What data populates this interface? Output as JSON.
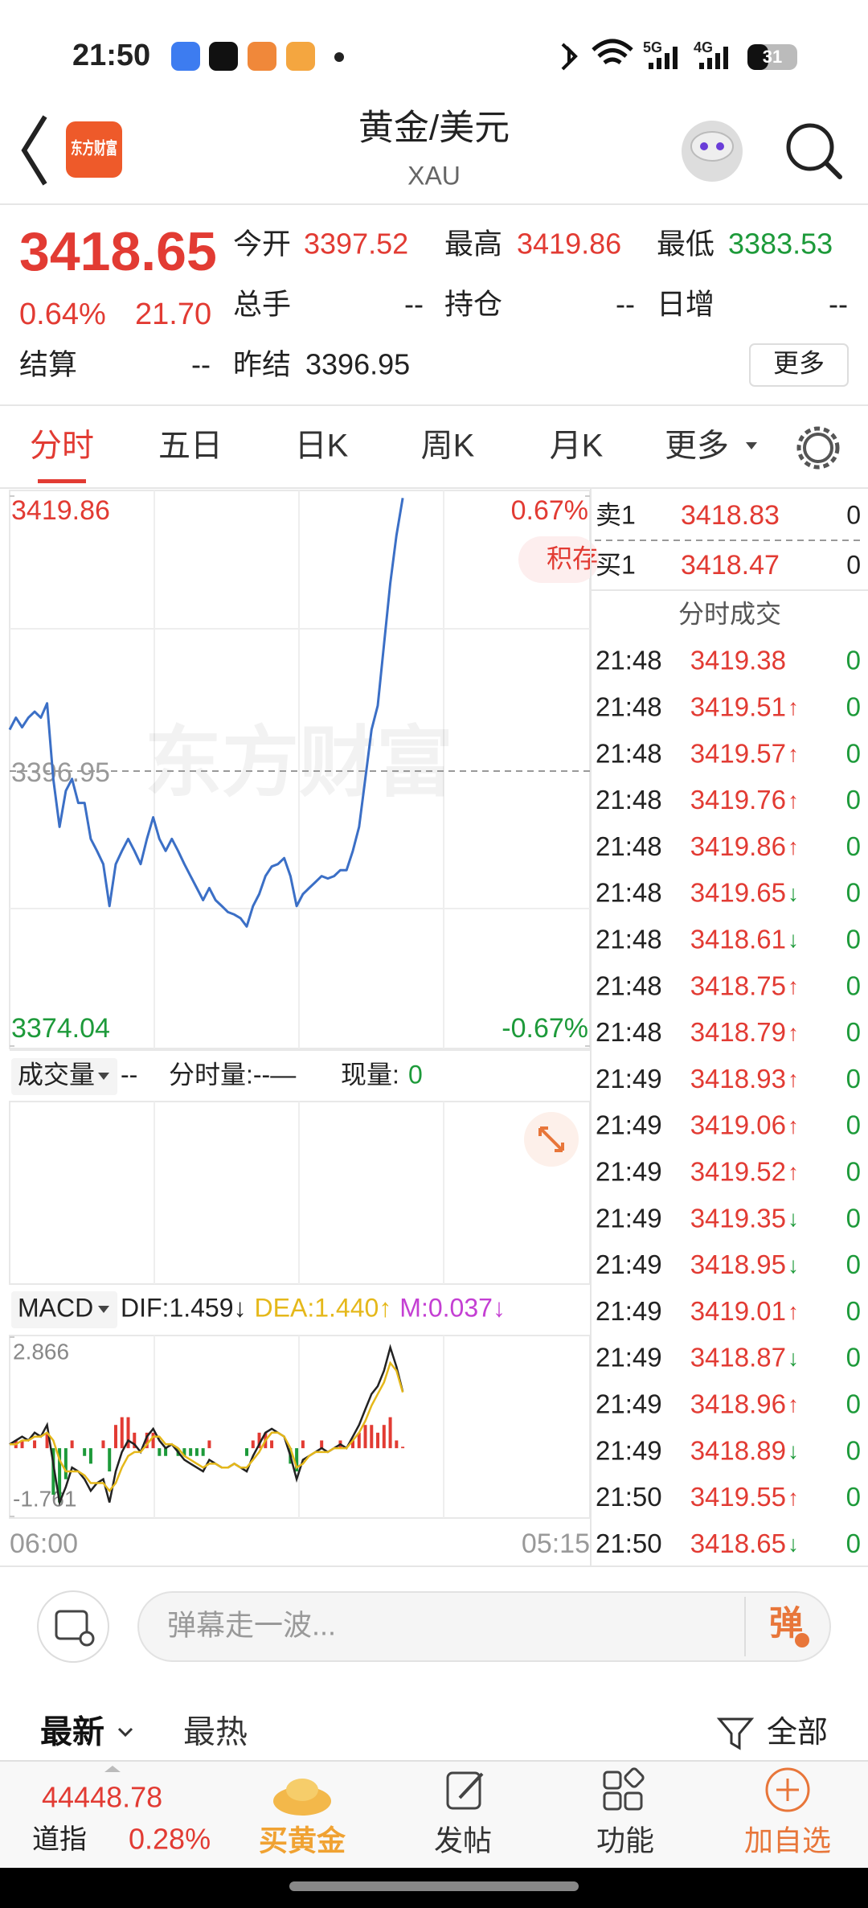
{
  "status_bar": {
    "time": "21:50",
    "net1": "5G",
    "net2": "4G",
    "battery": "31"
  },
  "header": {
    "logo": "东方财富",
    "title": "黄金/美元",
    "subtitle": "XAU"
  },
  "quote": {
    "price": "3418.65",
    "change_pct": "0.64%",
    "change": "21.70",
    "fields": [
      {
        "label": "今开",
        "value": "3397.52"
      },
      {
        "label": "最高",
        "value": "3419.86"
      },
      {
        "label": "最低",
        "value": "3383.53"
      },
      {
        "label": "总手",
        "value": "--"
      },
      {
        "label": "持仓",
        "value": "--"
      },
      {
        "label": "日增",
        "value": "--"
      },
      {
        "label": "结算",
        "value": "--"
      },
      {
        "label": "昨结",
        "value": "3396.95"
      }
    ],
    "more": "更多"
  },
  "tabs": [
    "分时",
    "五日",
    "日K",
    "周K",
    "月K",
    "更多"
  ],
  "chart_data": [
    {
      "type": "line",
      "watermark": "东方财富",
      "tag": "积存",
      "series": [
        {
          "color": "#3b6fc6",
          "values": [
            3400.4,
            3401.4,
            3400.6,
            3401.4,
            3401.9,
            3401.4,
            3402.6,
            3396.3,
            3392.3,
            3395.3,
            3396.3,
            3394.3,
            3394.3,
            3391.3,
            3390.3,
            3389.2,
            3385.7,
            3389.2,
            3390.3,
            3391.3,
            3390.3,
            3389.2,
            3391.3,
            3393.1,
            3391.3,
            3390.3,
            3391.3,
            3390.3,
            3389.2,
            3388.2,
            3387.2,
            3386.2,
            3387.2,
            3386.2,
            3385.7,
            3385.2,
            3385.0,
            3384.7,
            3384.0,
            3385.7,
            3386.7,
            3388.2,
            3389.0,
            3389.2,
            3389.7,
            3388.2,
            3385.7,
            3386.7,
            3387.2,
            3387.7,
            3388.2,
            3388.0,
            3388.2,
            3388.7,
            3388.7,
            3390.3,
            3392.3,
            3396.3,
            3400.4,
            3402.4,
            3407.5,
            3412.6,
            3416.6,
            3419.7,
            null,
            null,
            null,
            null,
            null,
            null,
            null,
            null,
            null,
            null,
            null,
            null,
            null,
            null,
            null,
            null,
            null,
            null,
            null,
            null,
            null,
            null,
            null,
            null,
            null,
            null,
            null,
            null,
            null,
            null
          ]
        }
      ],
      "ylim": [
        3374.04,
        3419.86
      ],
      "yticks": [
        3419.86,
        3396.95,
        3374.04
      ],
      "y2lim": [
        -0.67,
        0.67
      ],
      "y2ticks": [
        {
          "value": 0.67,
          "label": "0.67%"
        },
        {
          "value": -0.67,
          "label": "-0.67%"
        }
      ]
    },
    {
      "type": "macd",
      "indicator": "MACD",
      "series": [
        {
          "name": "DIF:1.459↓",
          "color": "#222222",
          "values": [
            0.1,
            0.2,
            0.3,
            0.2,
            0.4,
            0.3,
            0.6,
            -0.4,
            -1.4,
            -1.0,
            -0.5,
            -0.6,
            -0.8,
            -1.1,
            -0.9,
            -0.8,
            -1.4,
            -0.6,
            -0.1,
            0.2,
            0.1,
            -0.1,
            0.3,
            0.5,
            0.2,
            0,
            0.1,
            -0.1,
            -0.3,
            -0.4,
            -0.5,
            -0.6,
            -0.3,
            -0.4,
            -0.5,
            -0.5,
            -0.4,
            -0.5,
            -0.6,
            -0.2,
            0.1,
            0.4,
            0.5,
            0.4,
            0.3,
            -0.2,
            -0.8,
            -0.3,
            -0.2,
            -0.1,
            0,
            -0.1,
            0,
            0.1,
            0,
            0.3,
            0.6,
            1.0,
            1.4,
            1.6,
            2.0,
            2.6,
            2.1,
            1.459,
            null,
            null,
            null,
            null,
            null,
            null,
            null,
            null,
            null,
            null,
            null,
            null,
            null,
            null,
            null,
            null,
            null,
            null,
            null,
            null,
            null,
            null,
            null,
            null,
            null,
            null,
            null,
            null,
            null,
            null
          ]
        },
        {
          "name": "DEA:1.440↑",
          "color": "#e5b81a",
          "values": [
            0.1,
            0.1,
            0.2,
            0.2,
            0.3,
            0.3,
            0.4,
            0.2,
            -0.3,
            -0.6,
            -0.6,
            -0.6,
            -0.7,
            -0.9,
            -0.9,
            -0.9,
            -1.1,
            -0.9,
            -0.5,
            -0.2,
            -0.1,
            -0.1,
            0.1,
            0.3,
            0.3,
            0.1,
            0.1,
            0,
            -0.2,
            -0.3,
            -0.4,
            -0.5,
            -0.4,
            -0.4,
            -0.5,
            -0.5,
            -0.4,
            -0.5,
            -0.5,
            -0.3,
            -0.1,
            0.2,
            0.4,
            0.4,
            0.3,
            0,
            -0.5,
            -0.4,
            -0.2,
            -0.1,
            -0.1,
            -0.1,
            0,
            0,
            0,
            0.2,
            0.4,
            0.7,
            1.1,
            1.4,
            1.7,
            2.2,
            2.0,
            1.44,
            null,
            null,
            null,
            null,
            null,
            null,
            null,
            null,
            null,
            null,
            null,
            null,
            null,
            null,
            null,
            null,
            null,
            null,
            null,
            null,
            null,
            null,
            null,
            null,
            null,
            null,
            null,
            null,
            null,
            null
          ]
        },
        {
          "name": "M:0.037↓",
          "color": "#c43fd3",
          "bar_colors": {
            "up": "#e23b33",
            "down": "#1d9a3a"
          },
          "values": [
            0,
            0.2,
            0.2,
            0,
            0.2,
            0,
            0.4,
            -1.2,
            -1.4,
            -0.8,
            0.2,
            0,
            -0.2,
            -0.4,
            0,
            0.2,
            -0.6,
            0.6,
            0.8,
            0.8,
            0.4,
            0,
            0.4,
            0.4,
            -0.2,
            -0.2,
            0,
            -0.2,
            -0.2,
            -0.2,
            -0.2,
            -0.2,
            0.2,
            0,
            0,
            0,
            0,
            0,
            -0.2,
            0.2,
            0.4,
            0.4,
            0.2,
            0,
            0,
            -0.4,
            -0.6,
            0.2,
            0,
            0,
            0.2,
            0,
            0,
            0.2,
            0,
            0.2,
            0.4,
            0.6,
            0.6,
            0.4,
            0.6,
            0.8,
            0.2,
            0.037,
            null,
            null,
            null,
            null,
            null,
            null,
            null,
            null,
            null,
            null,
            null,
            null,
            null,
            null,
            null,
            null,
            null,
            null,
            null,
            null,
            null,
            null,
            null,
            null,
            null,
            null,
            null,
            null,
            null,
            null
          ]
        }
      ],
      "ylim": [
        -1.761,
        2.866
      ],
      "yticks": [
        2.866,
        -1.761
      ],
      "x_labels": [
        "06:00",
        "05:15"
      ]
    }
  ],
  "volume_bar": {
    "selector": "成交量",
    "value": "--",
    "period_volume": "分时量:--—",
    "current_label": "现量:",
    "current_value": "0"
  },
  "order_book": [
    {
      "label": "卖1",
      "price": "3418.83",
      "volume": "0"
    },
    {
      "label": "买1",
      "price": "3418.47",
      "volume": "0"
    }
  ],
  "trades_title": "分时成交",
  "trades": [
    {
      "time": "21:48",
      "price": "3419.38",
      "volume": "0"
    },
    {
      "time": "21:48",
      "price": "3419.51",
      "arrow": "↑",
      "volume": "0"
    },
    {
      "time": "21:48",
      "price": "3419.57",
      "arrow": "↑",
      "volume": "0"
    },
    {
      "time": "21:48",
      "price": "3419.76",
      "arrow": "↑",
      "volume": "0"
    },
    {
      "time": "21:48",
      "price": "3419.86",
      "arrow": "↑",
      "volume": "0"
    },
    {
      "time": "21:48",
      "price": "3419.65",
      "arrow": "↓",
      "volume": "0"
    },
    {
      "time": "21:48",
      "price": "3418.61",
      "arrow": "↓",
      "volume": "0"
    },
    {
      "time": "21:48",
      "price": "3418.75",
      "arrow": "↑",
      "volume": "0"
    },
    {
      "time": "21:48",
      "price": "3418.79",
      "arrow": "↑",
      "volume": "0"
    },
    {
      "time": "21:49",
      "price": "3418.93",
      "arrow": "↑",
      "volume": "0"
    },
    {
      "time": "21:49",
      "price": "3419.06",
      "arrow": "↑",
      "volume": "0"
    },
    {
      "time": "21:49",
      "price": "3419.52",
      "arrow": "↑",
      "volume": "0"
    },
    {
      "time": "21:49",
      "price": "3419.35",
      "arrow": "↓",
      "volume": "0"
    },
    {
      "time": "21:49",
      "price": "3418.95",
      "arrow": "↓",
      "volume": "0"
    },
    {
      "time": "21:49",
      "price": "3419.01",
      "arrow": "↑",
      "volume": "0"
    },
    {
      "time": "21:49",
      "price": "3418.87",
      "arrow": "↓",
      "volume": "0"
    },
    {
      "time": "21:49",
      "price": "3418.96",
      "arrow": "↑",
      "volume": "0"
    },
    {
      "time": "21:49",
      "price": "3418.89",
      "arrow": "↓",
      "volume": "0"
    },
    {
      "time": "21:50",
      "price": "3419.55",
      "arrow": "↑",
      "volume": "0"
    },
    {
      "time": "21:50",
      "price": "3418.65",
      "arrow": "↓",
      "volume": "0"
    }
  ],
  "comment": {
    "placeholder": "弹幕走一波...",
    "button": "弹"
  },
  "feed_tabs": [
    "最新",
    "最热"
  ],
  "filter": "全部",
  "bottom_nav": {
    "index_value": "44448.78",
    "index_name": "道指",
    "index_change": "0.28%",
    "items": [
      "买黄金",
      "发帖",
      "功能",
      "加自选"
    ]
  }
}
